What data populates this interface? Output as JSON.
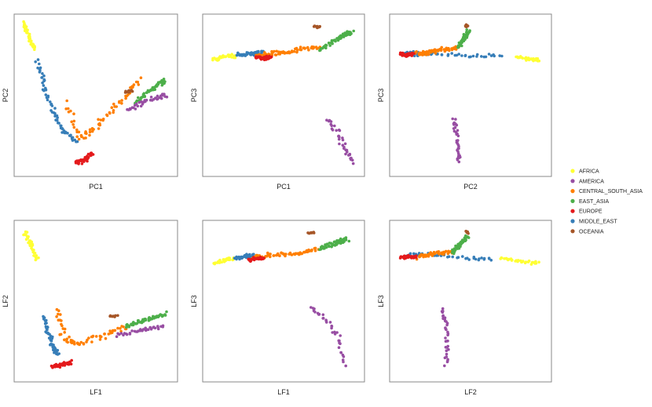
{
  "colors": {
    "AFRICA": "#ffff33",
    "AMERICA": "#984ea3",
    "CENTRAL_SOUTH_ASIA": "#ff7f00",
    "EAST_ASIA": "#4daf4a",
    "EUROPE": "#e41a1c",
    "MIDDLE_EAST": "#377eb8",
    "OCEANIA": "#a65628"
  },
  "legend": {
    "items": [
      "AFRICA",
      "AMERICA",
      "CENTRAL_SOUTH_ASIA",
      "EAST_ASIA",
      "EUROPE",
      "MIDDLE_EAST",
      "OCEANIA"
    ]
  },
  "chart_data": [
    {
      "type": "scatter",
      "xlabel": "PC1",
      "ylabel": "PC2",
      "xlim": [
        0,
        100
      ],
      "ylim": [
        0,
        100
      ],
      "groups": [
        {
          "name": "AFRICA",
          "path": [
            [
              3,
              97
            ],
            [
              6,
              90
            ],
            [
              10,
              80
            ]
          ],
          "spread": 1.2,
          "n": 40
        },
        {
          "name": "MIDDLE_EAST",
          "path": [
            [
              12,
              72
            ],
            [
              16,
              58
            ],
            [
              22,
              40
            ],
            [
              29,
              26
            ],
            [
              37,
              20
            ]
          ],
          "spread": 1.3,
          "n": 70
        },
        {
          "name": "CENTRAL_SOUTH_ASIA",
          "path": [
            [
              30,
              45
            ],
            [
              40,
              22
            ],
            [
              48,
              28
            ],
            [
              58,
              38
            ],
            [
              70,
              50
            ],
            [
              78,
              60
            ]
          ],
          "spread": 1.6,
          "n": 70
        },
        {
          "name": "EUROPE",
          "path": [
            [
              37,
              6
            ],
            [
              43,
              8
            ],
            [
              48,
              12
            ]
          ],
          "spread": 1.2,
          "n": 45
        },
        {
          "name": "EAST_ASIA",
          "path": [
            [
              75,
              45
            ],
            [
              85,
              53
            ],
            [
              91,
              57
            ],
            [
              95,
              60
            ]
          ],
          "spread": 1.2,
          "n": 55
        },
        {
          "name": "AMERICA",
          "path": [
            [
              70,
              40
            ],
            [
              84,
              47
            ],
            [
              96,
              50
            ]
          ],
          "spread": 1.3,
          "n": 35
        },
        {
          "name": "OCEANIA",
          "path": [
            [
              69,
              52
            ],
            [
              74,
              53
            ]
          ],
          "spread": 0.7,
          "n": 10
        }
      ]
    },
    {
      "type": "scatter",
      "xlabel": "PC1",
      "ylabel": "PC3",
      "xlim": [
        0,
        100
      ],
      "ylim": [
        0,
        100
      ],
      "groups": [
        {
          "name": "AFRICA",
          "path": [
            [
              4,
              73
            ],
            [
              10,
              75
            ],
            [
              18,
              76
            ]
          ],
          "spread": 1.0,
          "n": 35
        },
        {
          "name": "MIDDLE_EAST",
          "path": [
            [
              20,
              76
            ],
            [
              28,
              77
            ],
            [
              36,
              78
            ]
          ],
          "spread": 1.1,
          "n": 50
        },
        {
          "name": "CENTRAL_SOUTH_ASIA",
          "path": [
            [
              32,
              76
            ],
            [
              42,
              77
            ],
            [
              52,
              78
            ],
            [
              62,
              80
            ],
            [
              74,
              82
            ]
          ],
          "spread": 1.2,
          "n": 65
        },
        {
          "name": "EUROPE",
          "path": [
            [
              32,
              75
            ],
            [
              37,
              74
            ],
            [
              42,
              75
            ]
          ],
          "spread": 1.0,
          "n": 35
        },
        {
          "name": "EAST_ASIA",
          "path": [
            [
              74,
              80
            ],
            [
              84,
              86
            ],
            [
              90,
              89
            ],
            [
              95,
              91
            ]
          ],
          "spread": 1.3,
          "n": 55
        },
        {
          "name": "AMERICA",
          "path": [
            [
              78,
              35
            ],
            [
              86,
              25
            ],
            [
              90,
              15
            ],
            [
              96,
              6
            ]
          ],
          "spread": 1.3,
          "n": 35
        },
        {
          "name": "OCEANIA",
          "path": [
            [
              70,
              95
            ],
            [
              74,
              94
            ]
          ],
          "spread": 0.7,
          "n": 10
        }
      ]
    },
    {
      "type": "scatter",
      "xlabel": "PC2",
      "ylabel": "PC3",
      "xlim": [
        0,
        100
      ],
      "ylim": [
        0,
        100
      ],
      "groups": [
        {
          "name": "AFRICA",
          "path": [
            [
              80,
              75
            ],
            [
              88,
              74
            ],
            [
              95,
              73
            ]
          ],
          "spread": 1.0,
          "n": 35
        },
        {
          "name": "MIDDLE_EAST",
          "path": [
            [
              6,
              78
            ],
            [
              16,
              77
            ],
            [
              30,
              77
            ],
            [
              50,
              76
            ],
            [
              70,
              76
            ]
          ],
          "spread": 1.0,
          "n": 50
        },
        {
          "name": "CENTRAL_SOUTH_ASIA",
          "path": [
            [
              14,
              77
            ],
            [
              22,
              78
            ],
            [
              30,
              80
            ],
            [
              42,
              81
            ]
          ],
          "spread": 1.3,
          "n": 60
        },
        {
          "name": "EUROPE",
          "path": [
            [
              4,
              77
            ],
            [
              8,
              76
            ],
            [
              12,
              77
            ]
          ],
          "spread": 1.0,
          "n": 40
        },
        {
          "name": "EAST_ASIA",
          "path": [
            [
              42,
              82
            ],
            [
              46,
              88
            ],
            [
              49,
              92
            ]
          ],
          "spread": 1.2,
          "n": 50
        },
        {
          "name": "AMERICA",
          "path": [
            [
              39,
              35
            ],
            [
              41,
              25
            ],
            [
              42,
              15
            ],
            [
              42,
              6
            ]
          ],
          "spread": 1.1,
          "n": 35
        },
        {
          "name": "OCEANIA",
          "path": [
            [
              47,
              96
            ],
            [
              48,
              95
            ]
          ],
          "spread": 0.6,
          "n": 8
        }
      ]
    },
    {
      "type": "scatter",
      "xlabel": "LF1",
      "ylabel": "LF2",
      "xlim": [
        0,
        100
      ],
      "ylim": [
        0,
        100
      ],
      "groups": [
        {
          "name": "AFRICA",
          "path": [
            [
              4,
              95
            ],
            [
              8,
              87
            ],
            [
              12,
              78
            ]
          ],
          "spread": 1.2,
          "n": 40
        },
        {
          "name": "MIDDLE_EAST",
          "path": [
            [
              16,
              40
            ],
            [
              19,
              30
            ],
            [
              22,
              20
            ],
            [
              25,
              15
            ]
          ],
          "spread": 1.2,
          "n": 55
        },
        {
          "name": "CENTRAL_SOUTH_ASIA",
          "path": [
            [
              25,
              45
            ],
            [
              30,
              25
            ],
            [
              40,
              22
            ],
            [
              55,
              27
            ],
            [
              70,
              34
            ]
          ],
          "spread": 1.6,
          "n": 65
        },
        {
          "name": "EUROPE",
          "path": [
            [
              22,
              7
            ],
            [
              28,
              8
            ],
            [
              34,
              10
            ]
          ],
          "spread": 1.1,
          "n": 40
        },
        {
          "name": "EAST_ASIA",
          "path": [
            [
              70,
              34
            ],
            [
              82,
              38
            ],
            [
              95,
              42
            ]
          ],
          "spread": 1.3,
          "n": 55
        },
        {
          "name": "AMERICA",
          "path": [
            [
              64,
              28
            ],
            [
              80,
              31
            ],
            [
              94,
              33
            ]
          ],
          "spread": 1.1,
          "n": 35
        },
        {
          "name": "OCEANIA",
          "path": [
            [
              59,
              40
            ],
            [
              64,
              40
            ]
          ],
          "spread": 0.6,
          "n": 9
        }
      ]
    },
    {
      "type": "scatter",
      "xlabel": "LF1",
      "ylabel": "LF3",
      "xlim": [
        0,
        100
      ],
      "ylim": [
        0,
        100
      ],
      "groups": [
        {
          "name": "AFRICA",
          "path": [
            [
              5,
              75
            ],
            [
              11,
              77
            ],
            [
              18,
              78
            ]
          ],
          "spread": 1.0,
          "n": 35
        },
        {
          "name": "MIDDLE_EAST",
          "path": [
            [
              18,
              78
            ],
            [
              24,
              79
            ],
            [
              30,
              80
            ]
          ],
          "spread": 1.1,
          "n": 40
        },
        {
          "name": "CENTRAL_SOUTH_ASIA",
          "path": [
            [
              30,
              79
            ],
            [
              40,
              80
            ],
            [
              50,
              81
            ],
            [
              62,
              82
            ],
            [
              72,
              84
            ]
          ],
          "spread": 1.2,
          "n": 60
        },
        {
          "name": "EUROPE",
          "path": [
            [
              27,
              77
            ],
            [
              32,
              78
            ],
            [
              37,
              78
            ]
          ],
          "spread": 0.9,
          "n": 35
        },
        {
          "name": "EAST_ASIA",
          "path": [
            [
              74,
              84
            ],
            [
              84,
              88
            ],
            [
              92,
              91
            ]
          ],
          "spread": 1.3,
          "n": 55
        },
        {
          "name": "AMERICA",
          "path": [
            [
              68,
              46
            ],
            [
              78,
              38
            ],
            [
              86,
              26
            ],
            [
              90,
              8
            ]
          ],
          "spread": 1.2,
          "n": 35
        },
        {
          "name": "OCEANIA",
          "path": [
            [
              66,
              95
            ],
            [
              70,
              95
            ]
          ],
          "spread": 0.6,
          "n": 9
        }
      ]
    },
    {
      "type": "scatter",
      "xlabel": "LF2",
      "ylabel": "LF3",
      "xlim": [
        0,
        100
      ],
      "ylim": [
        0,
        100
      ],
      "groups": [
        {
          "name": "AFRICA",
          "path": [
            [
              70,
              78
            ],
            [
              82,
              76
            ],
            [
              94,
              75
            ]
          ],
          "spread": 1.0,
          "n": 35
        },
        {
          "name": "MIDDLE_EAST",
          "path": [
            [
              8,
              80
            ],
            [
              18,
              81
            ],
            [
              30,
              80
            ],
            [
              50,
              78
            ],
            [
              64,
              78
            ]
          ],
          "spread": 1.0,
          "n": 45
        },
        {
          "name": "CENTRAL_SOUTH_ASIA",
          "path": [
            [
              15,
              79
            ],
            [
              25,
              81
            ],
            [
              40,
              83
            ]
          ],
          "spread": 1.2,
          "n": 50
        },
        {
          "name": "EUROPE",
          "path": [
            [
              4,
              79
            ],
            [
              9,
              79
            ],
            [
              14,
              79
            ]
          ],
          "spread": 1.0,
          "n": 40
        },
        {
          "name": "EAST_ASIA",
          "path": [
            [
              38,
              82
            ],
            [
              44,
              88
            ],
            [
              48,
              93
            ]
          ],
          "spread": 1.2,
          "n": 50
        },
        {
          "name": "AMERICA",
          "path": [
            [
              31,
              45
            ],
            [
              34,
              35
            ],
            [
              35,
              22
            ],
            [
              34,
              8
            ]
          ],
          "spread": 1.1,
          "n": 35
        },
        {
          "name": "OCEANIA",
          "path": [
            [
              47,
              96
            ],
            [
              48,
              95
            ]
          ],
          "spread": 0.6,
          "n": 8
        }
      ]
    }
  ]
}
